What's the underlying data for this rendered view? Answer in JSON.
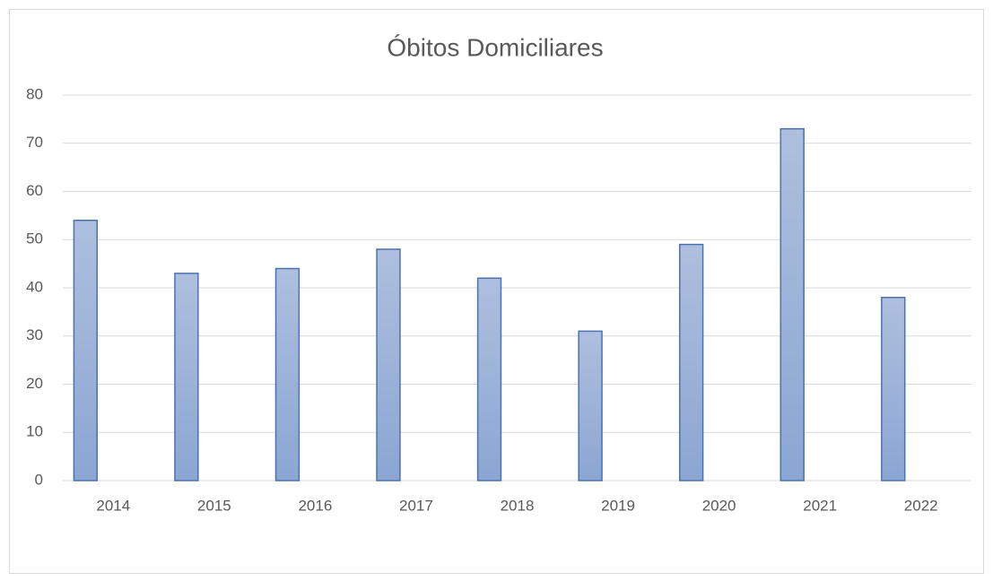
{
  "chart_data": {
    "type": "bar",
    "title": "Óbitos Domiciliares",
    "categories": [
      "2014",
      "2015",
      "2016",
      "2017",
      "2018",
      "2019",
      "2020",
      "2021",
      "2022"
    ],
    "values": [
      54,
      43,
      44,
      48,
      42,
      31,
      49,
      73,
      38
    ],
    "color": "#4a72b0",
    "ylim": [
      0,
      80
    ],
    "yticks": [
      0,
      10,
      20,
      30,
      40,
      50,
      60,
      70,
      80
    ],
    "grid": true
  }
}
